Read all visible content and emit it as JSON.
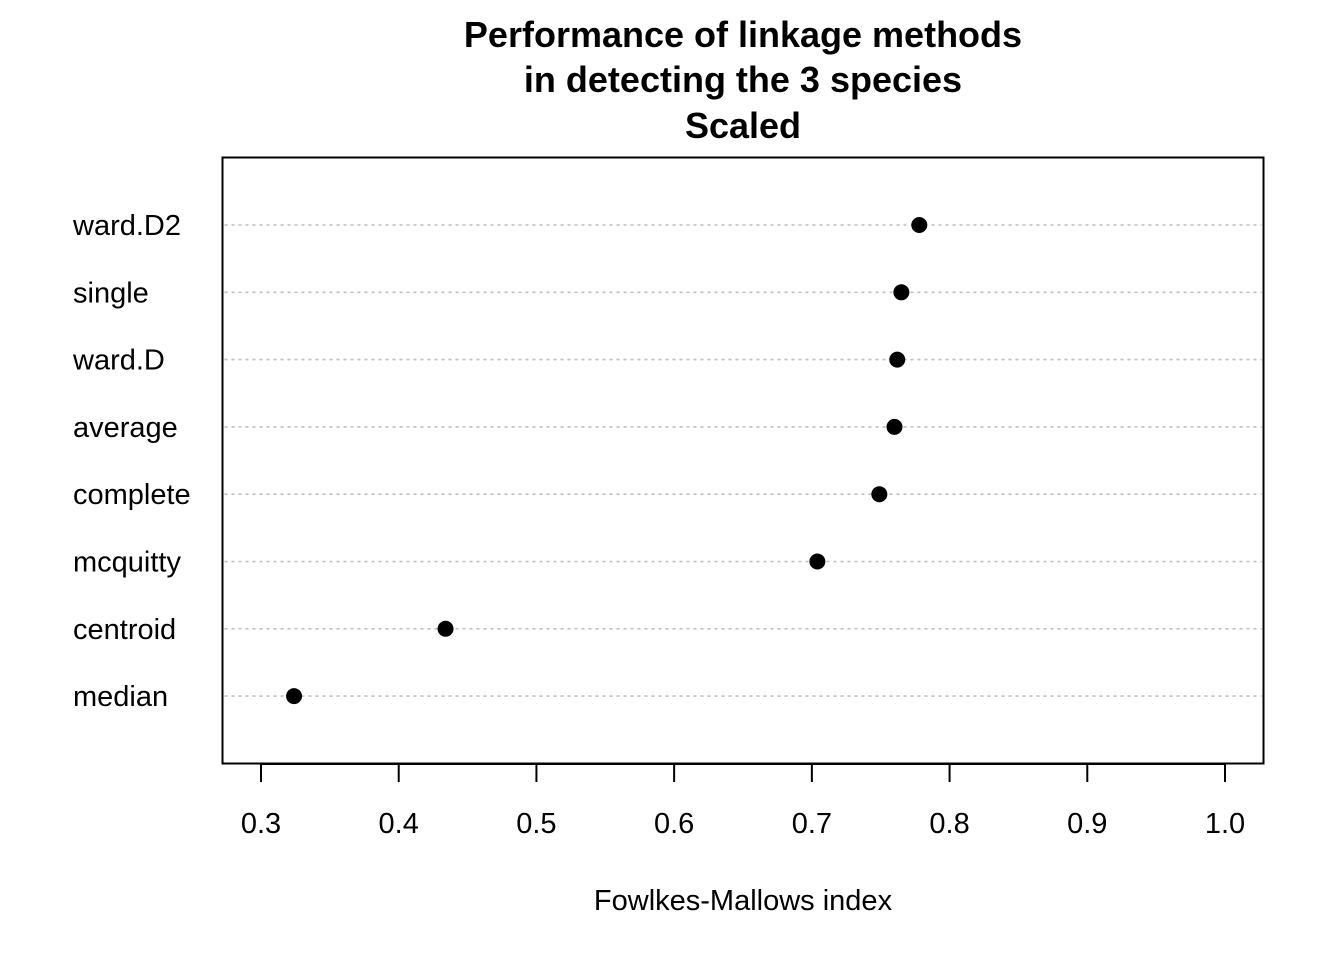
{
  "chart_data": {
    "type": "scatter",
    "subtype": "dotchart",
    "title_lines": [
      "Performance of linkage methods",
      "in detecting the 3 species",
      "Scaled"
    ],
    "xlabel": "Fowlkes-Mallows index",
    "ylabel": "",
    "xlim": [
      0.3,
      1.0
    ],
    "x_ticks": [
      "0.3",
      "0.4",
      "0.5",
      "0.6",
      "0.7",
      "0.8",
      "0.9",
      "1.0"
    ],
    "categories": [
      "ward.D2",
      "single",
      "ward.D",
      "average",
      "complete",
      "mcquitty",
      "centroid",
      "median"
    ],
    "values": [
      0.778,
      0.765,
      0.762,
      0.76,
      0.749,
      0.704,
      0.434,
      0.324
    ],
    "grid": "horizontal dotted guide lines",
    "legend": "none",
    "colors": {
      "points": "#000000",
      "guide": "#bebebe",
      "frame": "#000000"
    }
  }
}
